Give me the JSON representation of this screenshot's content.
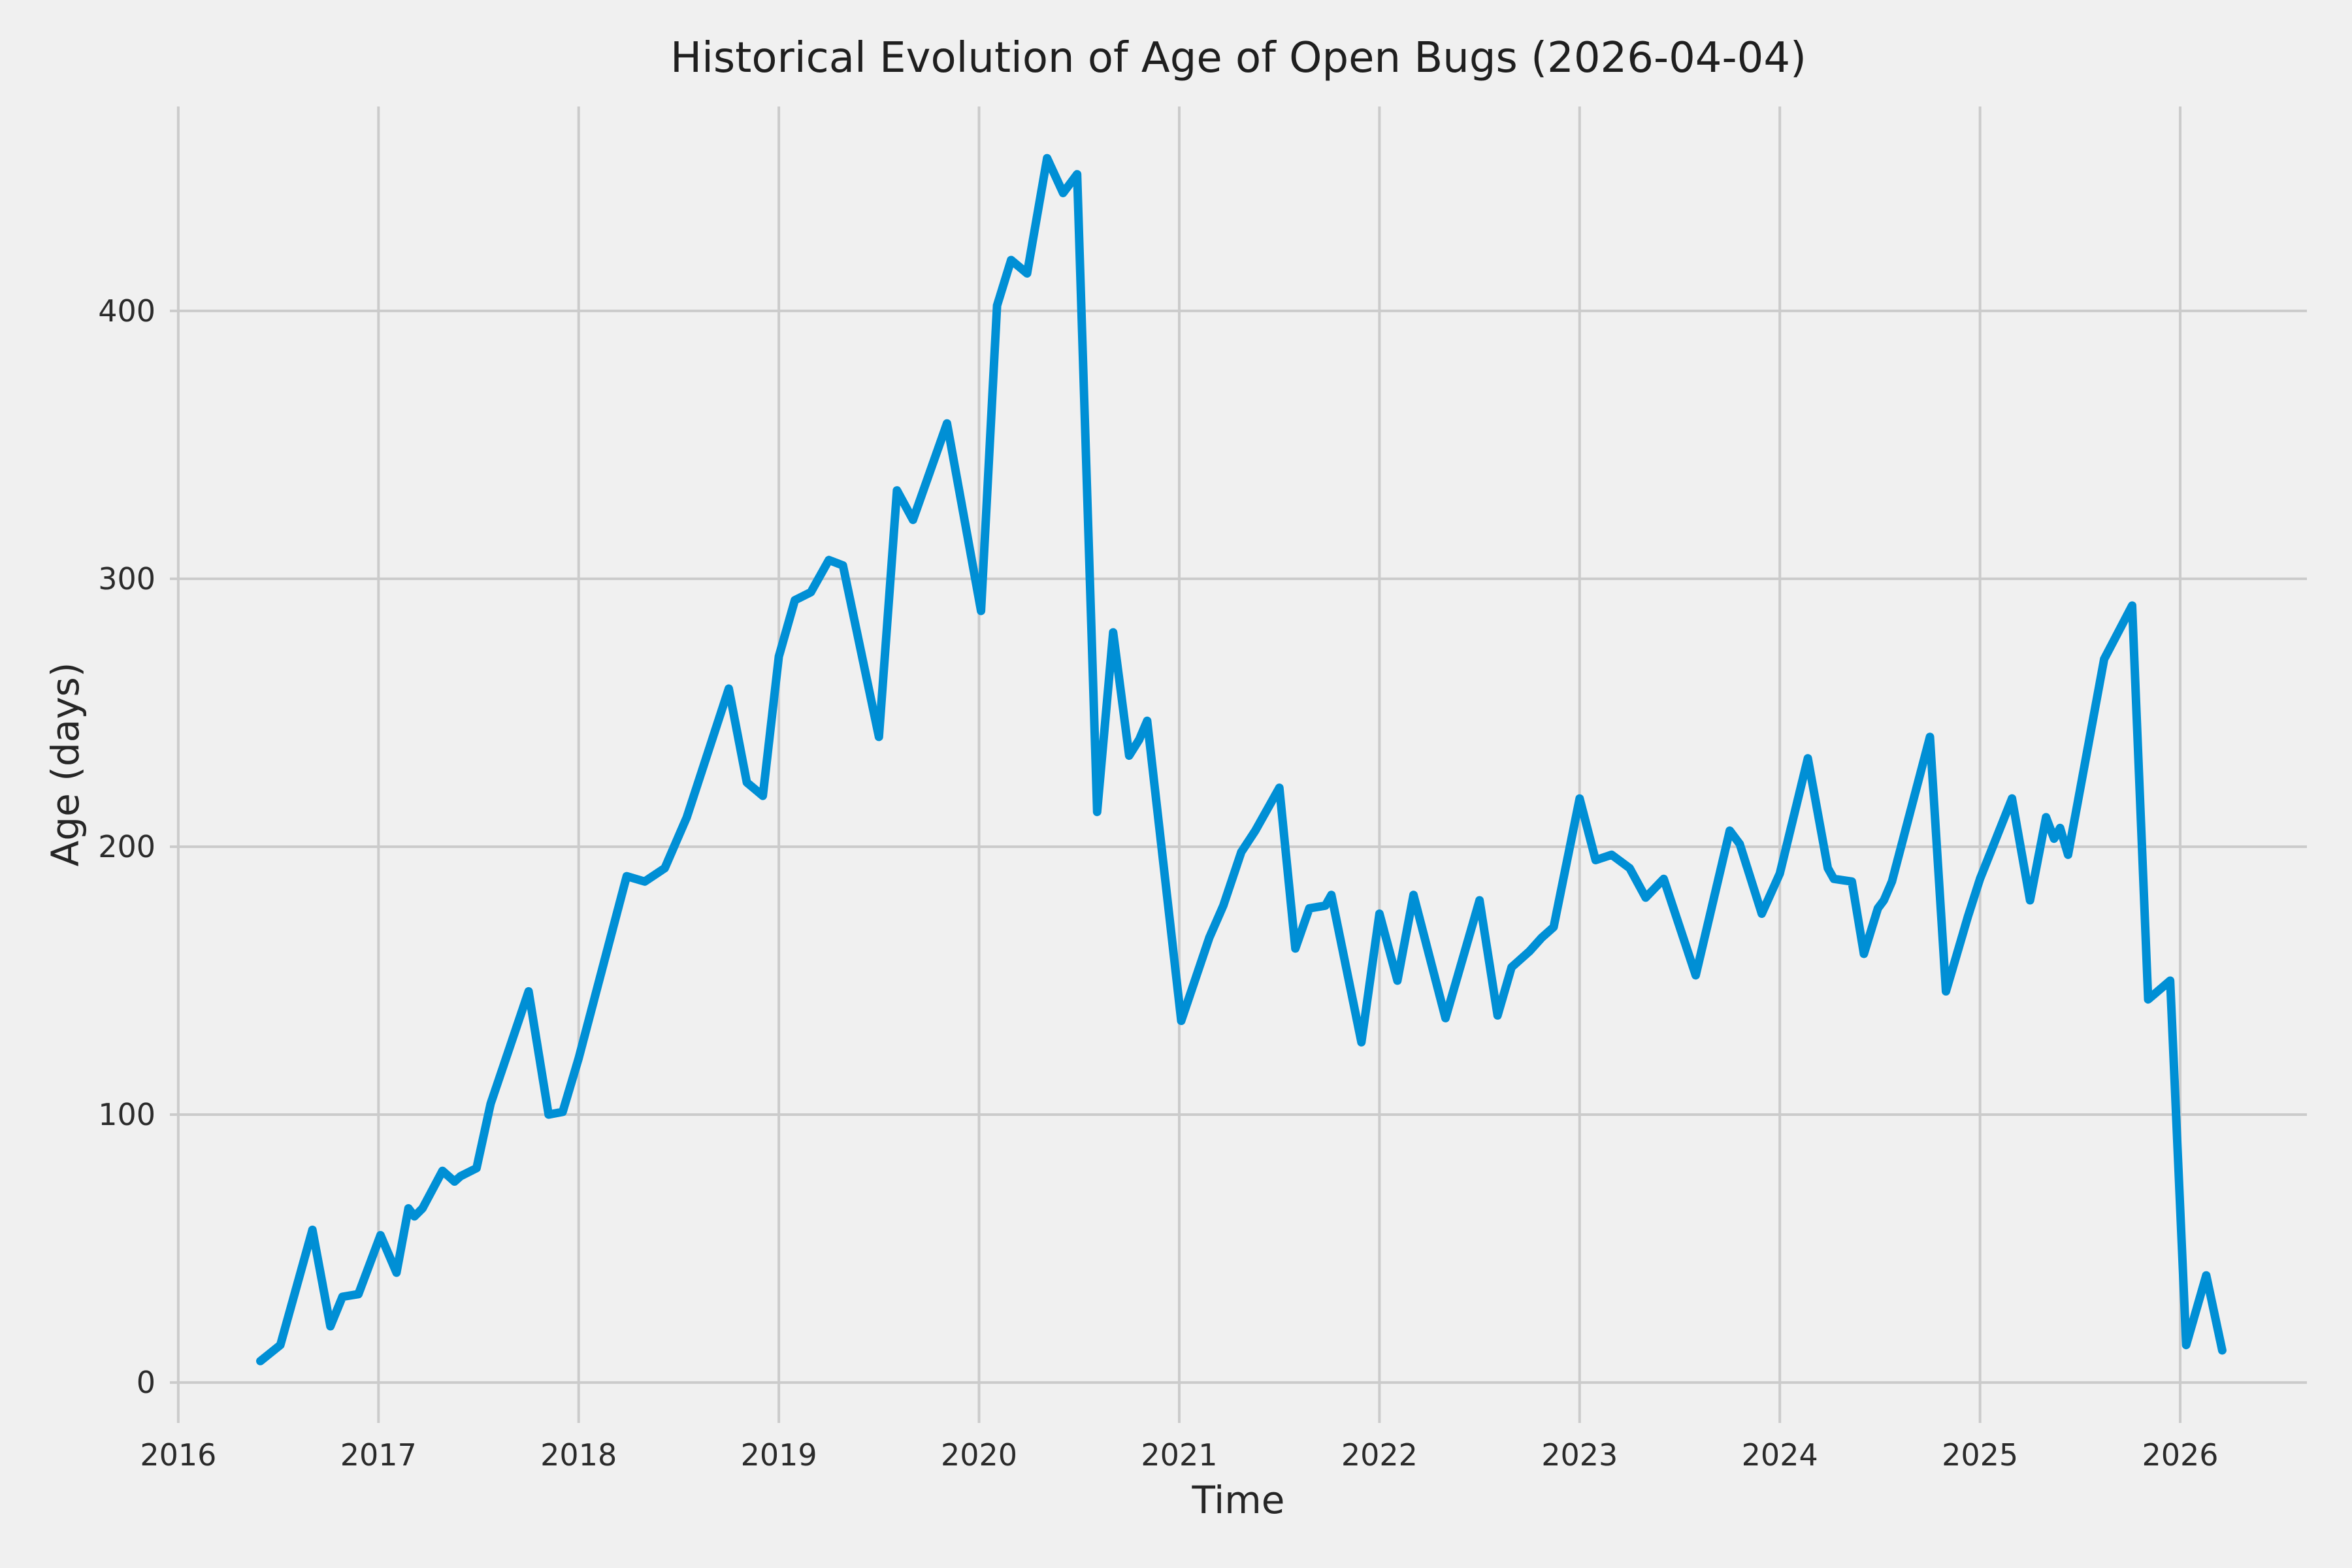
{
  "figure": {
    "background_color": "#f0f0f0",
    "grid_color": "#cbcbcb",
    "line_color": "#008fd5",
    "text_color": "#2b2b2b"
  },
  "chart_data": {
    "type": "line",
    "title": "Historical Evolution of Age of Open Bugs (2026-04-04)",
    "xlabel": "Time",
    "ylabel": "Age (days)",
    "x_ticks": [
      2016,
      2017,
      2018,
      2019,
      2020,
      2021,
      2022,
      2023,
      2024,
      2025,
      2026
    ],
    "y_ticks": [
      0,
      100,
      200,
      300,
      400
    ],
    "xlim": [
      2015.958,
      2026.633
    ],
    "ylim": [
      -15.1,
      476.3
    ],
    "grid": true,
    "legend": false,
    "series": [
      {
        "name": "age_of_open_bugs_days",
        "x": [
          2016.41,
          2016.51,
          2016.67,
          2016.76,
          2016.82,
          2016.9,
          2017.01,
          2017.09,
          2017.15,
          2017.18,
          2017.22,
          2017.32,
          2017.38,
          2017.41,
          2017.49,
          2017.56,
          2017.75,
          2017.85,
          2017.92,
          2018.0,
          2018.24,
          2018.33,
          2018.43,
          2018.54,
          2018.75,
          2018.84,
          2018.92,
          2019.0,
          2019.08,
          2019.16,
          2019.25,
          2019.32,
          2019.5,
          2019.59,
          2019.67,
          2019.84,
          2020.01,
          2020.09,
          2020.16,
          2020.24,
          2020.34,
          2020.42,
          2020.49,
          2020.59,
          2020.67,
          2020.75,
          2020.8,
          2020.84,
          2021.01,
          2021.15,
          2021.22,
          2021.31,
          2021.38,
          2021.5,
          2021.58,
          2021.65,
          2021.73,
          2021.76,
          2021.91,
          2022.0,
          2022.09,
          2022.17,
          2022.33,
          2022.5,
          2022.59,
          2022.66,
          2022.69,
          2022.75,
          2022.81,
          2022.87,
          2023.0,
          2023.08,
          2023.16,
          2023.25,
          2023.33,
          2023.42,
          2023.58,
          2023.75,
          2023.8,
          2023.91,
          2024.0,
          2024.14,
          2024.24,
          2024.27,
          2024.36,
          2024.42,
          2024.49,
          2024.52,
          2024.56,
          2024.75,
          2024.83,
          2024.94,
          2025.0,
          2025.16,
          2025.25,
          2025.33,
          2025.37,
          2025.4,
          2025.44,
          2025.62,
          2025.76,
          2025.84,
          2025.95,
          2026.03,
          2026.13,
          2026.21
        ],
        "y": [
          8,
          14,
          57,
          21,
          32,
          33,
          55,
          41,
          65,
          62,
          65,
          79,
          75,
          77,
          80,
          104,
          146,
          100,
          101,
          121,
          189,
          187,
          192,
          211,
          259,
          224,
          219,
          271,
          292,
          295,
          307,
          305,
          241,
          333,
          322,
          358,
          288,
          402,
          419,
          414,
          457,
          444,
          451,
          213,
          280,
          234,
          240,
          247,
          135,
          166,
          178,
          198,
          206,
          222,
          162,
          177,
          178,
          182,
          127,
          175,
          150,
          182,
          136,
          180,
          137,
          155,
          157,
          161,
          166,
          170,
          218,
          195,
          197,
          192,
          181,
          188,
          152,
          206,
          201,
          175,
          190,
          233,
          192,
          188,
          187,
          160,
          177,
          180,
          187,
          241,
          146,
          174,
          188,
          218,
          180,
          211,
          203,
          207,
          197,
          270,
          290,
          143,
          150,
          14,
          40,
          12
        ]
      }
    ]
  }
}
